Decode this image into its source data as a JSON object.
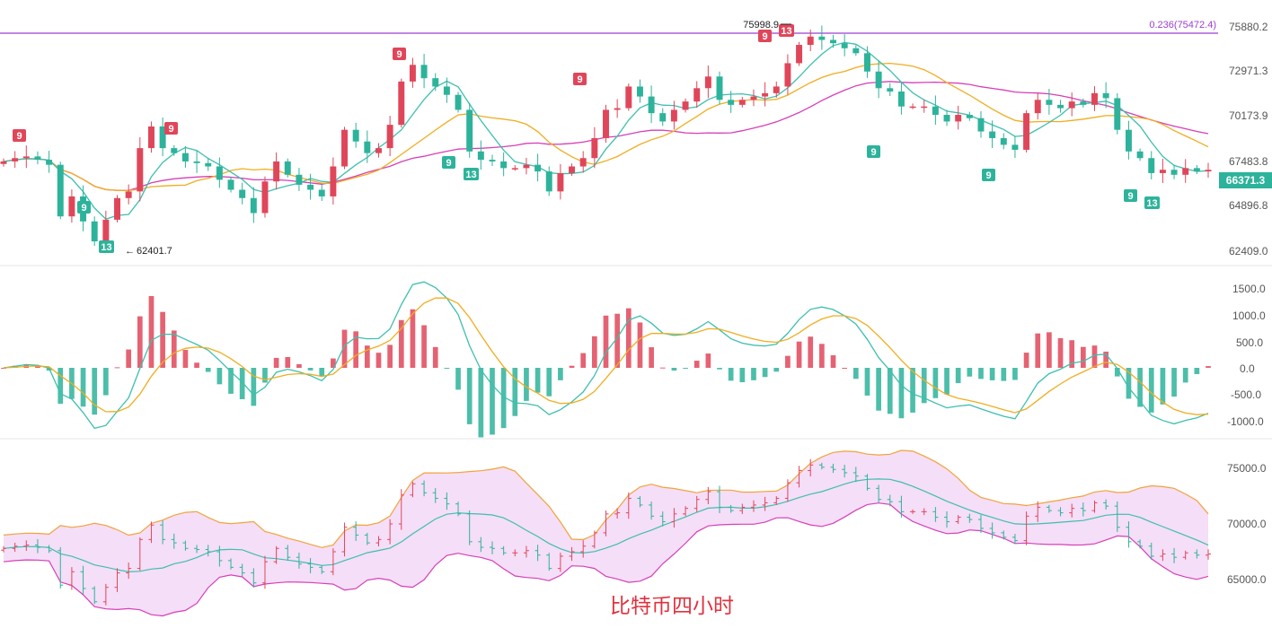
{
  "caption": "比特币四小时",
  "price_pane": {
    "axis_ticks": [
      "75880.2",
      "72971.3",
      "70173.9",
      "67483.8",
      "64896.8",
      "62409.0"
    ],
    "current_price": "66371.3",
    "fib_label": "0.236(75472.4)",
    "high_annotation": "75998.9",
    "low_annotation": "62401.7",
    "td_labels_red": [
      "9",
      "9",
      "9",
      "9",
      "13"
    ],
    "td_labels_green": [
      "9",
      "13",
      "9",
      "13",
      "9",
      "9",
      "9",
      "13"
    ]
  },
  "macd_pane": {
    "axis_ticks": [
      "1500.0",
      "1000.0",
      "500.0",
      "0.0",
      "-500.0",
      "-1000.0"
    ]
  },
  "boll_pane": {
    "axis_ticks": [
      "75000.0",
      "70000.0",
      "65000.0"
    ]
  },
  "chart_data": {
    "type": "candlestick",
    "series_price": [
      67800,
      68000,
      68100,
      67900,
      67600,
      64500,
      65700,
      64200,
      63000,
      64300,
      65600,
      66000,
      68600,
      69900,
      68600,
      68300,
      67800,
      67700,
      67500,
      66700,
      66100,
      65600,
      64700,
      66600,
      67800,
      67000,
      66400,
      66100,
      65700,
      67500,
      69700,
      69000,
      68300,
      68600,
      70000,
      72600,
      73600,
      72800,
      72300,
      71800,
      70900,
      68400,
      67900,
      67800,
      67400,
      67400,
      67600,
      67200,
      66000,
      67100,
      67500,
      68000,
      69200,
      70900,
      71000,
      72300,
      71700,
      70700,
      70200,
      70900,
      71400,
      72200,
      72900,
      71500,
      71200,
      71500,
      71700,
      71900,
      72300,
      73700,
      74800,
      75300,
      75100,
      74900,
      74600,
      74300,
      73200,
      72200,
      72000,
      71100,
      71100,
      71100,
      70600,
      70200,
      70600,
      70400,
      69600,
      69200,
      68800,
      68500,
      70700,
      71500,
      71200,
      71000,
      71400,
      71200,
      71900,
      71600,
      69700,
      68400,
      68000,
      67100,
      67300,
      67000,
      67400,
      67200,
      67300
    ],
    "axis_range_price": [
      62409.0,
      75880.2
    ],
    "macd_range": [
      -1000.0,
      1500.0
    ],
    "boll_range": [
      65000.0,
      75000.0
    ]
  }
}
